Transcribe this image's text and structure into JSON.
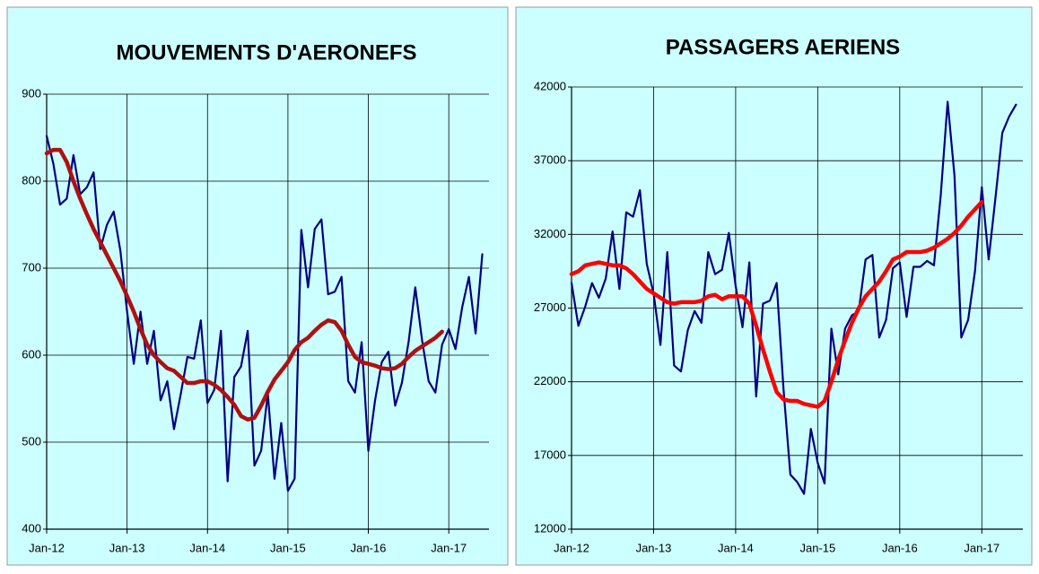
{
  "chart_data": [
    {
      "type": "line",
      "title": "MOUVEMENTS D'AERONEFS",
      "categories": [
        "Jan-12",
        null,
        null,
        null,
        null,
        null,
        null,
        null,
        null,
        null,
        null,
        null,
        "Jan-13",
        null,
        null,
        null,
        null,
        null,
        null,
        null,
        null,
        null,
        null,
        null,
        "Jan-14",
        null,
        null,
        null,
        null,
        null,
        null,
        null,
        null,
        null,
        null,
        null,
        "Jan-15",
        null,
        null,
        null,
        null,
        null,
        null,
        null,
        null,
        null,
        null,
        null,
        "Jan-16",
        null,
        null,
        null,
        null,
        null,
        null,
        null,
        null,
        null,
        null,
        null,
        "Jan-17",
        null,
        null,
        null,
        null,
        null
      ],
      "series": [
        {
          "color": "#000080",
          "values": [
            852,
            820,
            773,
            780,
            830,
            785,
            793,
            810,
            722,
            750,
            765,
            720,
            650,
            590,
            650,
            590,
            628,
            548,
            570,
            515,
            555,
            598,
            596,
            640,
            545,
            560,
            628,
            455,
            575,
            587,
            628,
            473,
            490,
            556,
            458,
            522,
            444,
            458,
            744,
            678,
            745,
            756,
            670,
            673,
            690,
            570,
            557,
            615,
            490,
            548,
            592,
            604,
            542,
            568,
            615,
            678,
            618,
            570,
            557,
            612,
            630,
            607,
            655,
            690,
            625,
            716
          ]
        },
        {
          "color": "#b01010",
          "values": [
            832,
            836,
            836,
            822,
            800,
            780,
            762,
            745,
            730,
            715,
            700,
            685,
            668,
            650,
            630,
            612,
            600,
            592,
            585,
            582,
            575,
            568,
            568,
            570,
            570,
            566,
            560,
            552,
            543,
            530,
            526,
            528,
            542,
            558,
            572,
            582,
            592,
            606,
            615,
            620,
            628,
            635,
            640,
            638,
            628,
            612,
            598,
            592,
            590,
            588,
            585,
            584,
            585,
            590,
            598,
            605,
            610,
            615,
            620,
            627,
            null,
            null,
            null,
            null,
            null,
            null
          ]
        }
      ],
      "ylim": [
        400,
        900
      ],
      "yticks": [
        400,
        500,
        600,
        700,
        800,
        900
      ],
      "grid": true
    },
    {
      "type": "line",
      "title": "PASSAGERS AERIENS",
      "categories": [
        "Jan-12",
        null,
        null,
        null,
        null,
        null,
        null,
        null,
        null,
        null,
        null,
        null,
        "Jan-13",
        null,
        null,
        null,
        null,
        null,
        null,
        null,
        null,
        null,
        null,
        null,
        "Jan-14",
        null,
        null,
        null,
        null,
        null,
        null,
        null,
        null,
        null,
        null,
        null,
        "Jan-15",
        null,
        null,
        null,
        null,
        null,
        null,
        null,
        null,
        null,
        null,
        null,
        "Jan-16",
        null,
        null,
        null,
        null,
        null,
        null,
        null,
        null,
        null,
        null,
        null,
        "Jan-17",
        null,
        null,
        null,
        null,
        null
      ],
      "series": [
        {
          "color": "#000080",
          "values": [
            28700,
            25800,
            27100,
            28700,
            27700,
            29000,
            32200,
            28300,
            33500,
            33200,
            35000,
            30000,
            28000,
            24500,
            30800,
            23100,
            22700,
            25500,
            26800,
            26000,
            30800,
            29300,
            29600,
            32100,
            28500,
            25700,
            30100,
            21000,
            27300,
            27500,
            28700,
            21500,
            15700,
            15200,
            14400,
            18800,
            16500,
            15100,
            25600,
            22500,
            25600,
            26500,
            26800,
            30300,
            30600,
            25000,
            26200,
            29700,
            30100,
            26400,
            29800,
            29800,
            30200,
            29900,
            34700,
            41000,
            36000,
            25000,
            26200,
            29500,
            35200,
            30300,
            34500,
            38900,
            40000,
            40800
          ]
        },
        {
          "color": "#ff0000",
          "values": [
            29300,
            29500,
            29900,
            30000,
            30100,
            30000,
            29900,
            29900,
            29700,
            29300,
            28800,
            28300,
            28000,
            27700,
            27400,
            27300,
            27400,
            27400,
            27400,
            27500,
            27800,
            27900,
            27600,
            27800,
            27800,
            27800,
            27300,
            25800,
            24200,
            22700,
            21300,
            20800,
            20700,
            20700,
            20500,
            20400,
            20300,
            20700,
            22000,
            23500,
            24800,
            26000,
            27000,
            27800,
            28300,
            28800,
            29500,
            30300,
            30500,
            30800,
            30800,
            30800,
            30900,
            31100,
            31400,
            31700,
            32100,
            32600,
            33200,
            33700,
            34200,
            null,
            null,
            null,
            null,
            null
          ]
        }
      ],
      "ylim": [
        12000,
        42000
      ],
      "yticks": [
        12000,
        17000,
        22000,
        27000,
        32000,
        37000,
        42000
      ],
      "grid": true
    }
  ]
}
